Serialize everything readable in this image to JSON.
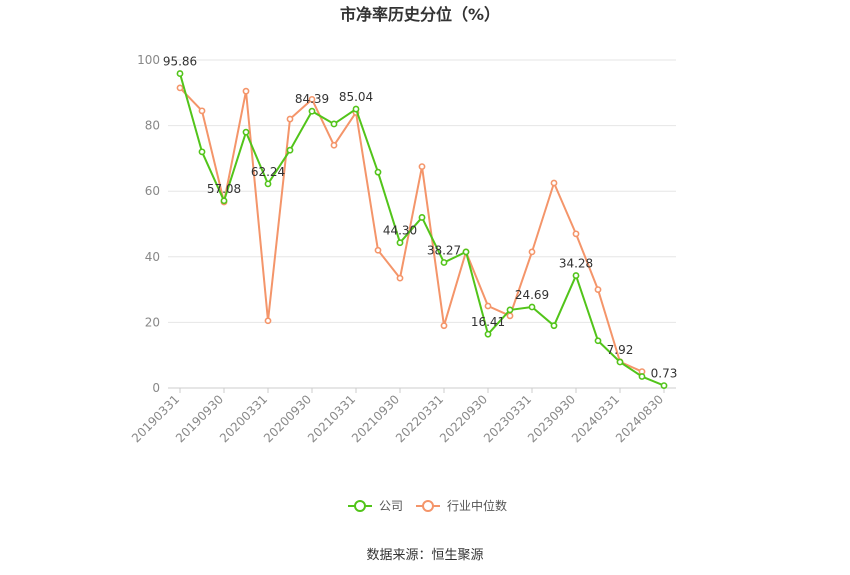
{
  "chart_data": {
    "type": "line",
    "title": "市净率历史分位（%）",
    "x": [
      "20190331",
      "20190630",
      "20190930",
      "20191231",
      "20200331",
      "20200630",
      "20200930",
      "20201231",
      "20210331",
      "20210630",
      "20210930",
      "20211231",
      "20220331",
      "20220630",
      "20220930",
      "20221231",
      "20230331",
      "20230630",
      "20230930",
      "20231231",
      "20240331",
      "20240630",
      "20240830"
    ],
    "x_tick_labels": [
      "20190331",
      "20190930",
      "20200331",
      "20200930",
      "20210331",
      "20210930",
      "20220331",
      "20220930",
      "20230331",
      "20230930",
      "20240331",
      "20240830"
    ],
    "ylim": [
      0,
      100
    ],
    "y_ticks": [
      0,
      20,
      40,
      60,
      80,
      100
    ],
    "grid": true,
    "legend_position": "bottom",
    "series": [
      {
        "name": "公司",
        "color": "#52c41a",
        "values": [
          95.86,
          72,
          57.08,
          78,
          62.24,
          72.5,
          84.39,
          80.5,
          85.04,
          65.8,
          44.3,
          52,
          38.27,
          41.5,
          16.41,
          23.8,
          24.69,
          19,
          34.28,
          14.4,
          7.92,
          3.5,
          0.73
        ]
      },
      {
        "name": "行业中位数",
        "color": "#f4956a",
        "values": [
          91.5,
          84.5,
          56.7,
          90.5,
          20.5,
          82,
          88,
          74,
          84,
          42,
          33.5,
          67.5,
          19,
          41.5,
          25,
          22,
          41.5,
          62.5,
          47,
          30,
          8,
          5,
          null
        ]
      }
    ],
    "data_labels": [
      {
        "series": 0,
        "index": 0,
        "text": "95.86"
      },
      {
        "series": 0,
        "index": 2,
        "text": "57.08"
      },
      {
        "series": 0,
        "index": 4,
        "text": "62.24"
      },
      {
        "series": 0,
        "index": 6,
        "text": "84.39"
      },
      {
        "series": 0,
        "index": 8,
        "text": "85.04"
      },
      {
        "series": 0,
        "index": 10,
        "text": "44.30"
      },
      {
        "series": 0,
        "index": 12,
        "text": "38.27"
      },
      {
        "series": 0,
        "index": 14,
        "text": "16.41"
      },
      {
        "series": 0,
        "index": 16,
        "text": "24.69"
      },
      {
        "series": 0,
        "index": 18,
        "text": "34.28"
      },
      {
        "series": 0,
        "index": 20,
        "text": "7.92"
      },
      {
        "series": 0,
        "index": 22,
        "text": "0.73"
      }
    ]
  },
  "source": "数据来源：恒生聚源"
}
